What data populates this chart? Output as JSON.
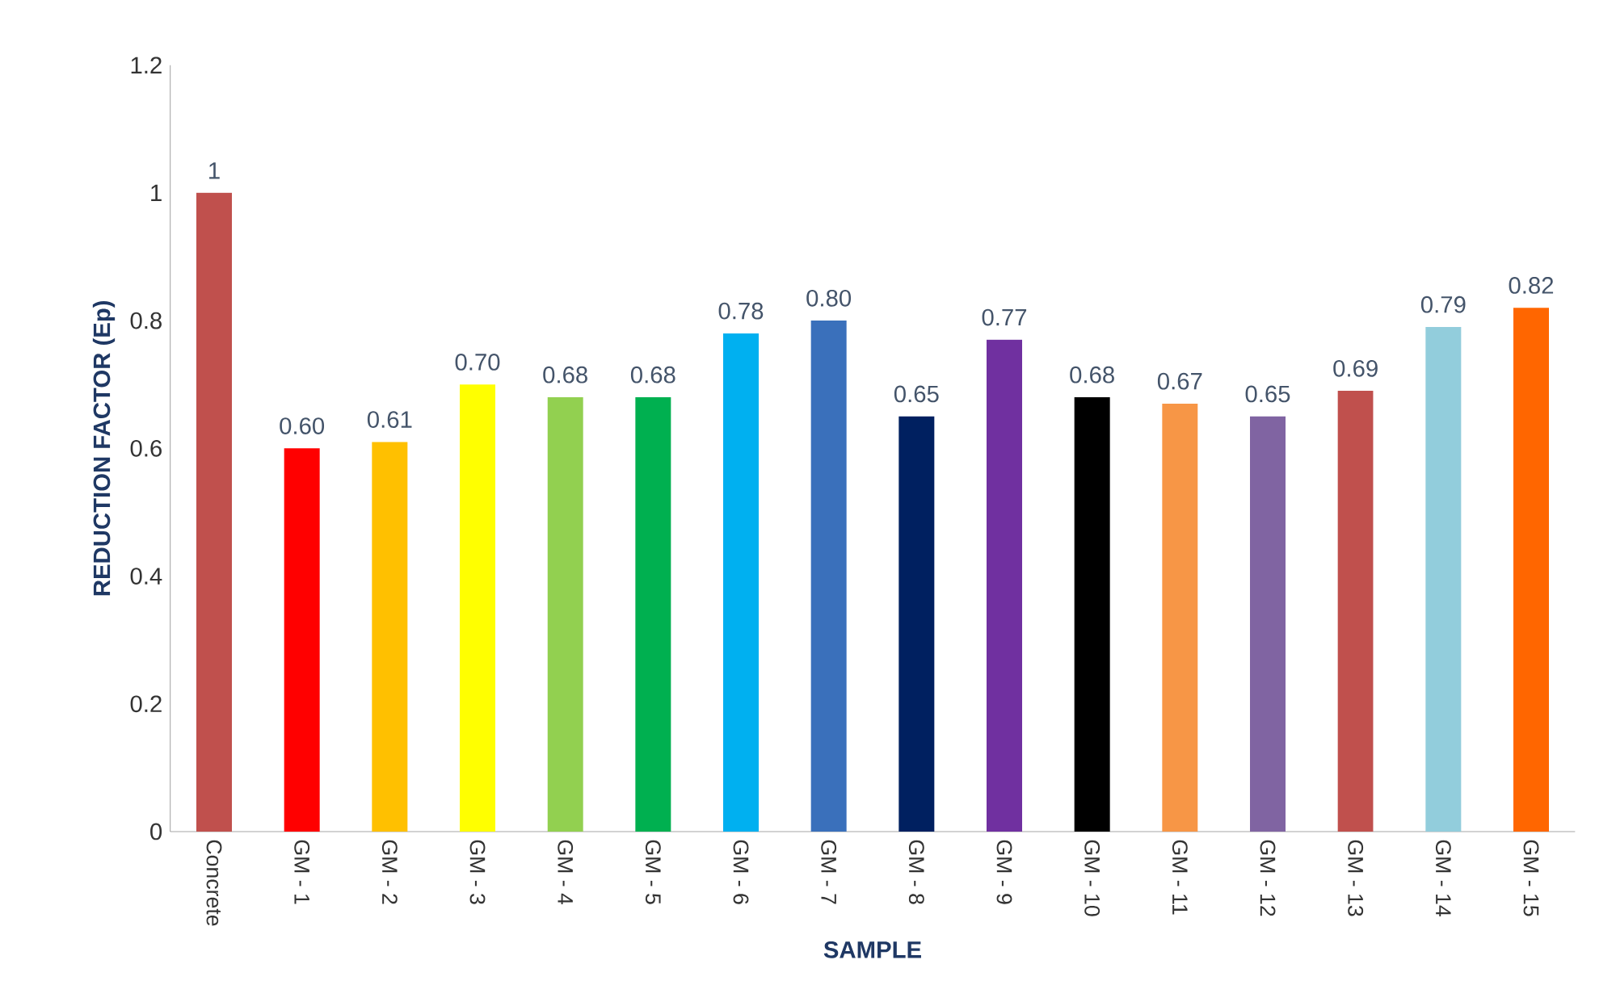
{
  "chart_data": {
    "type": "bar",
    "xlabel": "SAMPLE",
    "ylabel": "REDUCTION FACTOR (Ep)",
    "categories": [
      "Concrete",
      "GM - 1",
      "GM - 2",
      "GM - 3",
      "GM - 4",
      "GM - 5",
      "GM - 6",
      "GM - 7",
      "GM - 8",
      "GM - 9",
      "GM - 10",
      "GM - 11",
      "GM - 12",
      "GM - 13",
      "GM - 14",
      "GM - 15"
    ],
    "values": [
      1,
      0.6,
      0.61,
      0.7,
      0.68,
      0.68,
      0.78,
      0.8,
      0.65,
      0.77,
      0.68,
      0.67,
      0.65,
      0.69,
      0.79,
      0.82
    ],
    "value_labels": [
      "1",
      "0.60",
      "0.61",
      "0.70",
      "0.68",
      "0.68",
      "0.78",
      "0.80",
      "0.65",
      "0.77",
      "0.68",
      "0.67",
      "0.65",
      "0.69",
      "0.79",
      "0.82"
    ],
    "colors": [
      "#c0504d",
      "#ff0000",
      "#ffc000",
      "#ffff00",
      "#92d050",
      "#00b050",
      "#00b0f0",
      "#3a70bb",
      "#002060",
      "#7030a0",
      "#000000",
      "#f79646",
      "#8064a2",
      "#c0504d",
      "#92cddc",
      "#ff6600"
    ],
    "ylim": [
      0,
      1.2
    ],
    "yticks": [
      0,
      0.2,
      0.4,
      0.6,
      0.8,
      1,
      1.2
    ]
  }
}
